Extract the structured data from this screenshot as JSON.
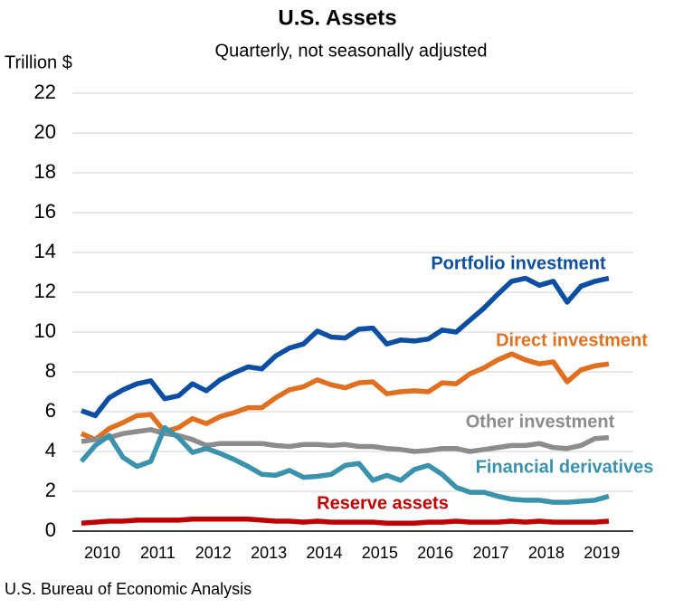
{
  "chart_data": {
    "type": "line",
    "title": "U.S. Assets",
    "subtitle": "Quarterly, not seasonally adjusted",
    "y_label": "Trillion $",
    "source": "U.S. Bureau of Economic Analysis",
    "categories": [
      null,
      "2010",
      null,
      null,
      null,
      "2011",
      null,
      null,
      null,
      "2012",
      null,
      null,
      null,
      "2013",
      null,
      null,
      null,
      "2014",
      null,
      null,
      null,
      "2015",
      null,
      null,
      null,
      "2016",
      null,
      null,
      null,
      "2017",
      null,
      null,
      null,
      "2018",
      null,
      null,
      null,
      "2019",
      null
    ],
    "ylim": [
      0,
      22
    ],
    "yticks": [
      0,
      2,
      4,
      6,
      8,
      10,
      12,
      14,
      16,
      18,
      20,
      22
    ],
    "grid": true,
    "series": [
      {
        "name": "Portfolio investment",
        "color": "#0b4ea2",
        "values": [
          6.05,
          5.8,
          6.7,
          7.1,
          7.4,
          7.55,
          6.65,
          6.8,
          7.4,
          7.05,
          7.6,
          7.95,
          8.25,
          8.15,
          8.8,
          9.2,
          9.4,
          10.05,
          9.75,
          9.7,
          10.15,
          10.2,
          9.4,
          9.6,
          9.55,
          9.65,
          10.1,
          10.0,
          10.6,
          11.2,
          11.9,
          12.55,
          12.7,
          12.35,
          12.55,
          11.5,
          12.3,
          12.55,
          12.7
        ]
      },
      {
        "name": "Direct investment",
        "color": "#e0701f",
        "values": [
          4.9,
          4.6,
          5.15,
          5.45,
          5.8,
          5.85,
          5.0,
          5.2,
          5.65,
          5.4,
          5.75,
          5.95,
          6.2,
          6.2,
          6.7,
          7.1,
          7.25,
          7.6,
          7.35,
          7.2,
          7.45,
          7.5,
          6.9,
          7.0,
          7.05,
          7.0,
          7.45,
          7.4,
          7.9,
          8.2,
          8.6,
          8.9,
          8.6,
          8.4,
          8.5,
          7.5,
          8.1,
          8.3,
          8.4
        ]
      },
      {
        "name": "Other investment",
        "color": "#8c8c8c",
        "values": [
          4.5,
          4.6,
          4.7,
          4.9,
          5.0,
          5.1,
          4.9,
          4.8,
          4.6,
          4.3,
          4.4,
          4.4,
          4.4,
          4.4,
          4.3,
          4.25,
          4.35,
          4.35,
          4.3,
          4.35,
          4.25,
          4.25,
          4.15,
          4.1,
          4.0,
          4.05,
          4.15,
          4.15,
          4.0,
          4.1,
          4.2,
          4.3,
          4.3,
          4.4,
          4.2,
          4.15,
          4.3,
          4.65,
          4.7
        ]
      },
      {
        "name": "Financial derivatives",
        "color": "#3a92ad",
        "values": [
          3.5,
          4.3,
          4.8,
          3.7,
          3.25,
          3.5,
          5.2,
          4.7,
          3.95,
          4.15,
          3.9,
          3.6,
          3.25,
          2.85,
          2.8,
          3.05,
          2.7,
          2.75,
          2.85,
          3.3,
          3.4,
          2.55,
          2.8,
          2.55,
          3.1,
          3.3,
          2.85,
          2.2,
          1.95,
          1.95,
          1.75,
          1.6,
          1.55,
          1.55,
          1.45,
          1.45,
          1.5,
          1.55,
          1.75
        ]
      },
      {
        "name": "Reserve assets",
        "color": "#c00000",
        "values": [
          0.4,
          0.45,
          0.5,
          0.5,
          0.55,
          0.55,
          0.55,
          0.55,
          0.6,
          0.6,
          0.6,
          0.6,
          0.6,
          0.55,
          0.5,
          0.5,
          0.45,
          0.5,
          0.45,
          0.45,
          0.45,
          0.45,
          0.4,
          0.4,
          0.4,
          0.45,
          0.45,
          0.5,
          0.45,
          0.45,
          0.45,
          0.5,
          0.45,
          0.5,
          0.45,
          0.45,
          0.45,
          0.45,
          0.5
        ]
      }
    ]
  }
}
